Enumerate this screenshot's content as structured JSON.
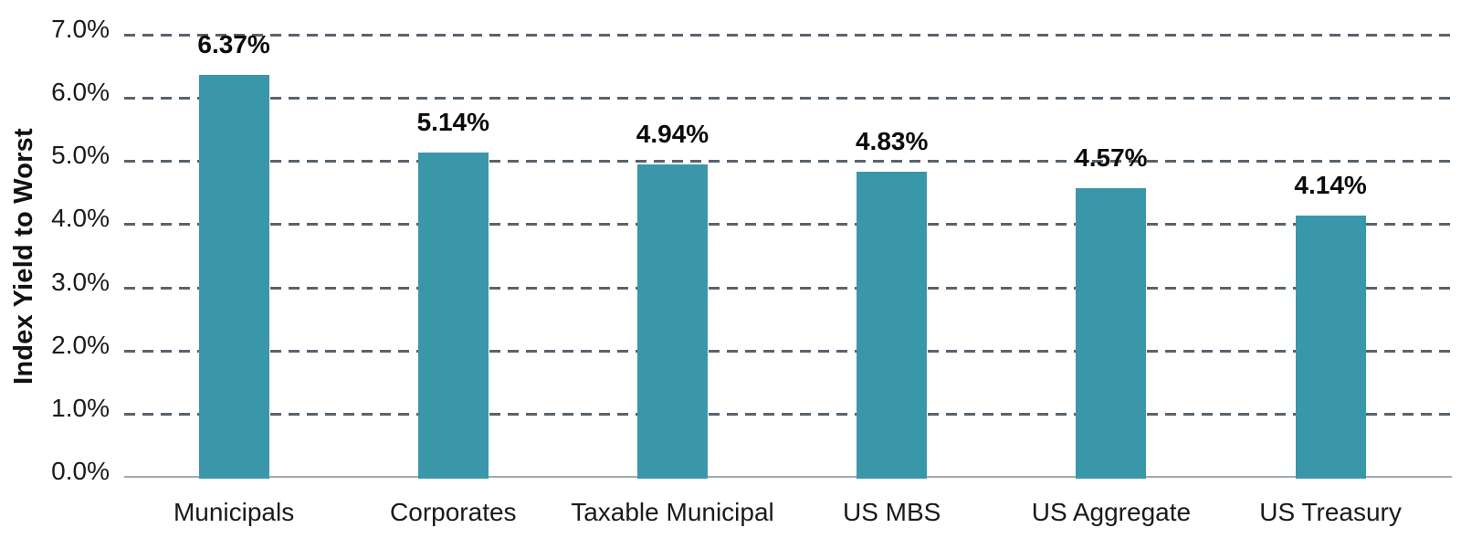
{
  "chart_data": {
    "type": "bar",
    "title": "",
    "xlabel": "",
    "ylabel": "Index Yield to Worst",
    "categories": [
      "Municipals",
      "Corporates",
      "Taxable Municipal",
      "US MBS",
      "US Aggregate",
      "US Treasury"
    ],
    "values": [
      6.37,
      5.14,
      4.94,
      4.83,
      4.57,
      4.14
    ],
    "value_labels": [
      "6.37%",
      "5.14%",
      "4.94%",
      "4.83%",
      "4.57%",
      "4.14%"
    ],
    "ylim": [
      0,
      7
    ],
    "ytick_values": [
      0,
      1,
      2,
      3,
      4,
      5,
      6,
      7
    ],
    "yticks": [
      "0.0%",
      "1.0%",
      "2.0%",
      "3.0%",
      "4.0%",
      "5.0%",
      "6.0%",
      "7.0%"
    ],
    "grid": "dashed horizontal gridlines, solid baseline",
    "legend": null,
    "colors": {
      "bar": "#3A97A9",
      "gridline": "#58646E",
      "baseline": "#A0AAB1",
      "text": "#1A1A1A"
    }
  }
}
